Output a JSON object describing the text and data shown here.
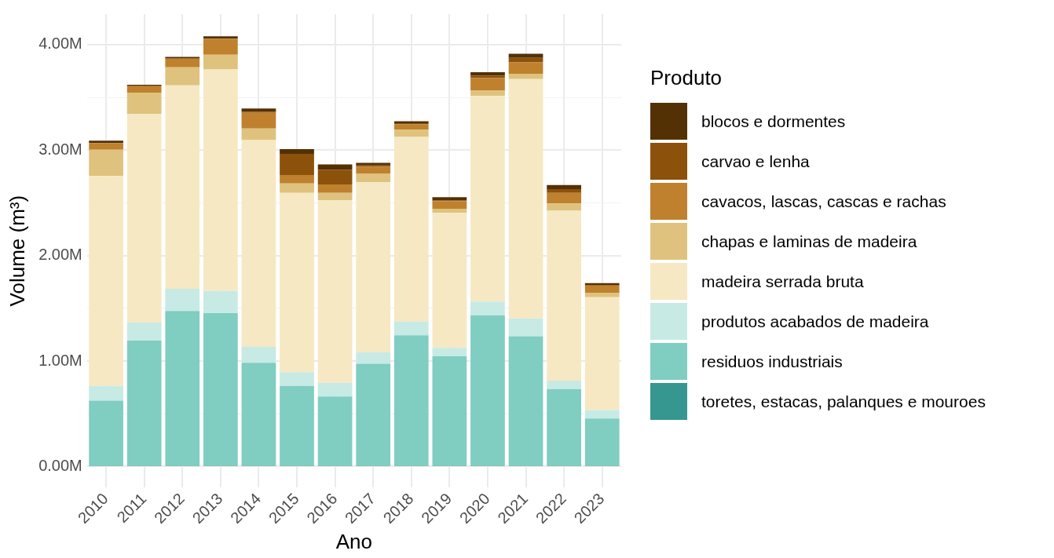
{
  "chart_data": {
    "type": "bar",
    "stacked": true,
    "xlabel": "Ano",
    "ylabel": "Volume (m³)",
    "legend_title": "Produto",
    "legend": "right",
    "grid": true,
    "categories": [
      "2010",
      "2011",
      "2012",
      "2013",
      "2014",
      "2015",
      "2016",
      "2017",
      "2018",
      "2019",
      "2020",
      "2021",
      "2022",
      "2023"
    ],
    "ylim": [
      -0.2,
      4.29
    ],
    "yticks": [
      {
        "value": 0,
        "label": "0.00M"
      },
      {
        "value": 0.5,
        "label": null
      },
      {
        "value": 1,
        "label": "1.00M"
      },
      {
        "value": 1.5,
        "label": null
      },
      {
        "value": 2,
        "label": "2.00M"
      },
      {
        "value": 2.5,
        "label": null
      },
      {
        "value": 3,
        "label": "3.00M"
      },
      {
        "value": 3.5,
        "label": null
      },
      {
        "value": 4,
        "label": "4.00M"
      }
    ],
    "series": [
      {
        "name": "toretes, estacas, palanques e mouroes",
        "color": "#35978f",
        "values": [
          0.005,
          0.005,
          0.005,
          0.005,
          0.005,
          0.005,
          0.005,
          0.005,
          0.005,
          0.005,
          0.005,
          0.005,
          0.005,
          0.005
        ]
      },
      {
        "name": "residuos industriais",
        "color": "#80cdc1",
        "values": [
          0.62,
          1.19,
          1.47,
          1.45,
          0.98,
          0.76,
          0.66,
          0.97,
          1.24,
          1.04,
          1.43,
          1.23,
          0.73,
          0.45
        ]
      },
      {
        "name": "produtos acabados de madeira",
        "color": "#c7eae5",
        "values": [
          0.14,
          0.17,
          0.21,
          0.21,
          0.15,
          0.13,
          0.13,
          0.11,
          0.13,
          0.08,
          0.13,
          0.17,
          0.08,
          0.08
        ]
      },
      {
        "name": "madeira serrada bruta",
        "color": "#f6e8c3",
        "values": [
          1.99,
          1.98,
          1.93,
          2.1,
          1.96,
          1.7,
          1.73,
          1.61,
          1.75,
          1.28,
          1.95,
          2.27,
          1.61,
          1.07
        ]
      },
      {
        "name": "chapas e laminas de madeira",
        "color": "#dfc27d",
        "values": [
          0.25,
          0.2,
          0.17,
          0.14,
          0.11,
          0.09,
          0.07,
          0.08,
          0.07,
          0.04,
          0.05,
          0.05,
          0.07,
          0.04
        ]
      },
      {
        "name": "cavacos, lascas, cascas e rachas",
        "color": "#bf812d",
        "values": [
          0.06,
          0.06,
          0.08,
          0.15,
          0.15,
          0.08,
          0.08,
          0.07,
          0.05,
          0.07,
          0.12,
          0.11,
          0.1,
          0.07
        ]
      },
      {
        "name": "carvao e lenha",
        "color": "#8c510a",
        "values": [
          0.005,
          0.005,
          0.005,
          0.005,
          0.01,
          0.2,
          0.14,
          0.01,
          0.01,
          0.01,
          0.02,
          0.04,
          0.035,
          0.005
        ]
      },
      {
        "name": "blocos e dormentes",
        "color": "#543005",
        "values": [
          0.02,
          0.01,
          0.015,
          0.02,
          0.03,
          0.045,
          0.05,
          0.025,
          0.02,
          0.03,
          0.035,
          0.04,
          0.04,
          0.02
        ]
      }
    ]
  }
}
